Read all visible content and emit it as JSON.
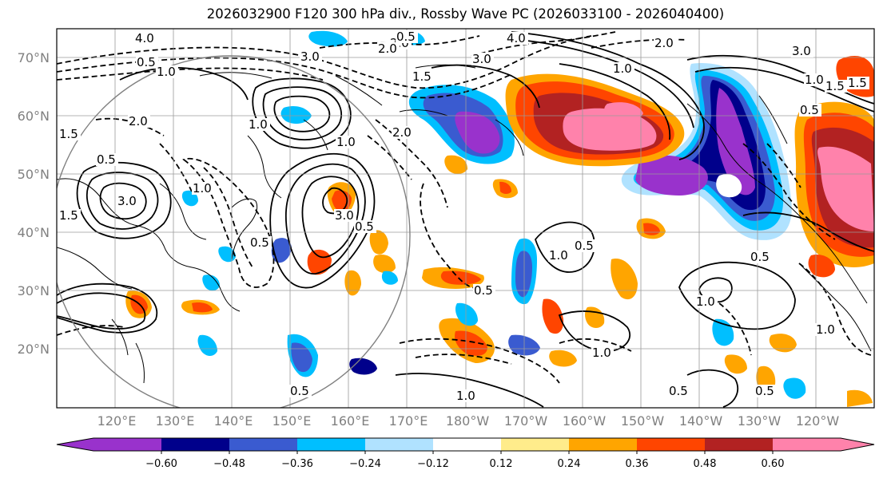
{
  "title": "2026032900 F120 300 hPa div., Rossby Wave PC (2026033100 - 2026040400)",
  "lat_labels": [
    "70°N",
    "60°N",
    "50°N",
    "40°N",
    "30°N",
    "20°N"
  ],
  "lon_labels": [
    "120°E",
    "130°E",
    "140°E",
    "150°E",
    "160°E",
    "170°E",
    "180°W",
    "170°W",
    "160°W",
    "150°W",
    "140°W",
    "130°W",
    "120°W"
  ],
  "colorbar": {
    "colors": [
      "#9932CC",
      "#00008B",
      "#3A5BD0",
      "#00BFFF",
      "#B0E2FF",
      "#FFFFFF",
      "#FFEC8B",
      "#FFA500",
      "#FF4500",
      "#B22222",
      "#FF82AB"
    ],
    "levels": [
      "−0.60",
      "−0.48",
      "−0.36",
      "−0.24",
      "−0.12",
      "0.12",
      "0.24",
      "0.36",
      "0.48",
      "0.60"
    ]
  },
  "contour_labels": [
    "4.0",
    "2.0",
    "0.5",
    "1.0",
    "3.0",
    "2.0",
    "0.5",
    "4.0",
    "3.0",
    "2.0",
    "3.0",
    "1.0",
    "1.5",
    "2.0",
    "1.5",
    "0.5",
    "1.0",
    "3.0",
    "1.5",
    "0.5",
    "2.0",
    "1.0",
    "3.0",
    "1.0",
    "0.5",
    "1.0",
    "1.5",
    "0.5",
    "1.5",
    "1.0",
    "1.0",
    "0.5",
    "1.0",
    "1.0",
    "0.5",
    "0.5",
    "1.0",
    "0.5",
    "0.5",
    "0.5"
  ]
}
